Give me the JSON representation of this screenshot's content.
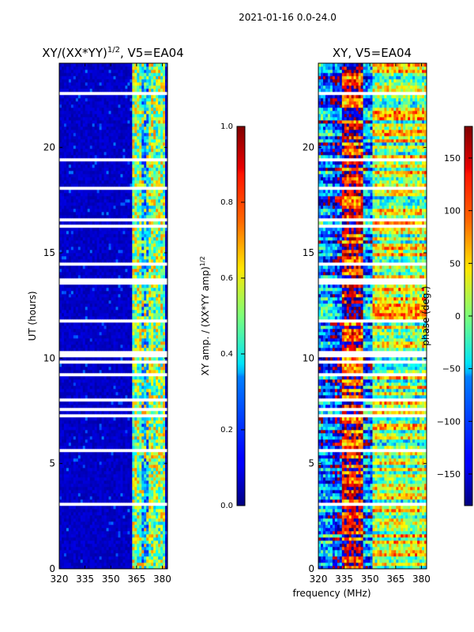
{
  "suptitle": "2021-01-16 0.0-24.0",
  "shared_xlabel": "frequency (MHz)",
  "chart_data": [
    {
      "type": "heatmap",
      "title": "XY/(XX*YY)",
      "title_sup": "1/2",
      "title_suffix": ", V5=EA04",
      "xlabel": "",
      "ylabel": "UT (hours)",
      "xlim": [
        320,
        383
      ],
      "ylim": [
        0,
        24
      ],
      "xticks": [
        320,
        335,
        350,
        365,
        380
      ],
      "yticks": [
        0,
        5,
        10,
        15,
        20
      ],
      "colorbar": {
        "label": "XY amp. / (XX*YY amp)",
        "label_sup": "1/2",
        "range": [
          0.0,
          1.0
        ],
        "ticks": [
          "0.0",
          "0.2",
          "0.4",
          "0.6",
          "0.8",
          "1.0"
        ],
        "colormap": "jet"
      },
      "flagged_bands_hours": [
        [
          10.05,
          10.3
        ],
        [
          13.6,
          13.8
        ],
        [
          14.4,
          14.6
        ],
        [
          8.0,
          8.15
        ],
        [
          5.55,
          5.7
        ]
      ],
      "description_values": {
        "background_amplitude": 0.05,
        "band_362_382_amplitude": [
          0.3,
          0.7
        ]
      }
    },
    {
      "type": "heatmap",
      "title": "XY, V5=EA04",
      "xlabel": "frequency (MHz)",
      "ylabel": "",
      "xlim": [
        320,
        383
      ],
      "ylim": [
        0,
        24
      ],
      "xticks": [
        320,
        335,
        350,
        365,
        380
      ],
      "yticks": [
        0,
        5,
        10,
        15,
        20
      ],
      "colorbar": {
        "label": "phase (deg.)",
        "range": [
          -180,
          180
        ],
        "ticks": [
          "150",
          "100",
          "50",
          "0",
          "−50",
          "−100",
          "−150"
        ],
        "tick_values": [
          150,
          100,
          50,
          0,
          -50,
          -100,
          -150
        ],
        "colormap": "jet"
      },
      "flagged_bands_hours": [
        [
          10.05,
          10.3
        ],
        [
          13.6,
          13.8
        ],
        [
          14.4,
          14.6
        ],
        [
          8.0,
          8.15
        ],
        [
          5.55,
          5.7
        ]
      ]
    }
  ],
  "colors": {
    "jet_low": "#00007f",
    "jet_high": "#7f0000",
    "flag": "#ffffff"
  }
}
